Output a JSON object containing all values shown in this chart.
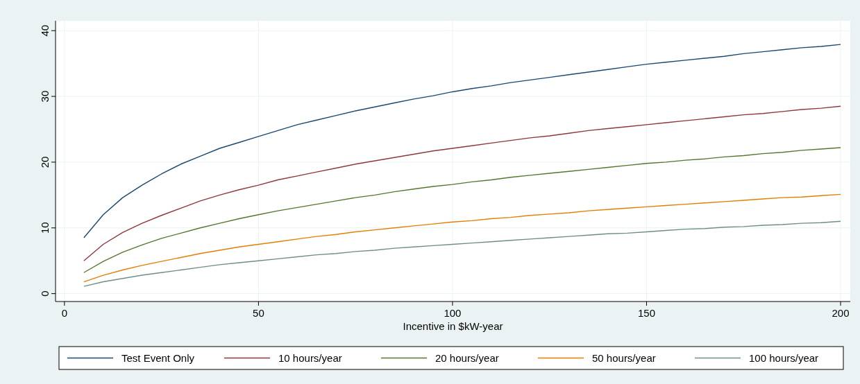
{
  "chart_data": {
    "type": "line",
    "xlabel": "Incentive in $kW-year",
    "x": [
      5,
      10,
      15,
      20,
      25,
      30,
      35,
      40,
      45,
      50,
      55,
      60,
      65,
      70,
      75,
      80,
      85,
      90,
      95,
      100,
      105,
      110,
      115,
      120,
      125,
      130,
      135,
      140,
      145,
      150,
      155,
      160,
      165,
      170,
      175,
      180,
      185,
      190,
      195,
      200
    ],
    "series": [
      {
        "name": "Test Event Only",
        "color": "#1a476f",
        "values": [
          8.5,
          12.0,
          14.6,
          16.5,
          18.2,
          19.7,
          20.9,
          22.1,
          23.0,
          23.9,
          24.8,
          25.7,
          26.4,
          27.1,
          27.8,
          28.4,
          29.0,
          29.6,
          30.1,
          30.7,
          31.2,
          31.6,
          32.1,
          32.5,
          32.9,
          33.3,
          33.7,
          34.1,
          34.5,
          34.9,
          35.2,
          35.5,
          35.8,
          36.1,
          36.5,
          36.8,
          37.1,
          37.4,
          37.6,
          37.9
        ]
      },
      {
        "name": "10 hours/year",
        "color": "#90353b",
        "values": [
          5.0,
          7.5,
          9.3,
          10.7,
          11.9,
          13.0,
          14.1,
          15.0,
          15.8,
          16.5,
          17.3,
          17.9,
          18.5,
          19.1,
          19.7,
          20.2,
          20.7,
          21.2,
          21.7,
          22.1,
          22.5,
          22.9,
          23.3,
          23.7,
          24.0,
          24.4,
          24.8,
          25.1,
          25.4,
          25.7,
          26.0,
          26.3,
          26.6,
          26.9,
          27.2,
          27.4,
          27.7,
          28.0,
          28.2,
          28.5
        ]
      },
      {
        "name": "20 hours/year",
        "color": "#55752f",
        "values": [
          3.2,
          4.9,
          6.3,
          7.4,
          8.4,
          9.2,
          10.0,
          10.7,
          11.4,
          12.0,
          12.6,
          13.1,
          13.6,
          14.1,
          14.6,
          15.0,
          15.5,
          15.9,
          16.3,
          16.6,
          17.0,
          17.3,
          17.7,
          18.0,
          18.3,
          18.6,
          18.9,
          19.2,
          19.5,
          19.8,
          20.0,
          20.3,
          20.5,
          20.8,
          21.0,
          21.3,
          21.5,
          21.8,
          22.0,
          22.2
        ]
      },
      {
        "name": "50 hours/year",
        "color": "#e37e00",
        "values": [
          1.8,
          2.8,
          3.6,
          4.3,
          4.9,
          5.5,
          6.1,
          6.6,
          7.1,
          7.5,
          7.9,
          8.3,
          8.7,
          9.0,
          9.4,
          9.7,
          10.0,
          10.3,
          10.6,
          10.9,
          11.1,
          11.4,
          11.6,
          11.9,
          12.1,
          12.3,
          12.6,
          12.8,
          13.0,
          13.2,
          13.4,
          13.6,
          13.8,
          14.0,
          14.2,
          14.4,
          14.6,
          14.7,
          14.9,
          15.1
        ]
      },
      {
        "name": "100 hours/year",
        "color": "#6e8e84",
        "values": [
          1.1,
          1.8,
          2.3,
          2.8,
          3.2,
          3.6,
          4.0,
          4.4,
          4.7,
          5.0,
          5.3,
          5.6,
          5.9,
          6.1,
          6.4,
          6.6,
          6.9,
          7.1,
          7.3,
          7.5,
          7.7,
          7.9,
          8.1,
          8.3,
          8.5,
          8.7,
          8.9,
          9.1,
          9.2,
          9.4,
          9.6,
          9.8,
          9.9,
          10.1,
          10.2,
          10.4,
          10.5,
          10.7,
          10.8,
          11.0
        ]
      }
    ],
    "xlim": [
      -2.3,
      202.5
    ],
    "ylim": [
      -1.2,
      41.5
    ],
    "xticks": [
      0,
      50,
      100,
      150,
      200
    ],
    "yticks": [
      0,
      10,
      20,
      30,
      40
    ],
    "grid": true,
    "legend": "bottom",
    "marker": "none",
    "line_style": "solid"
  }
}
